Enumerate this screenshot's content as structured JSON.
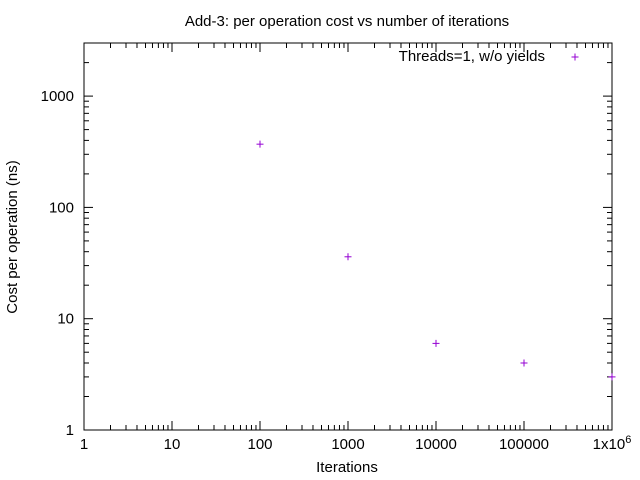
{
  "chart_data": {
    "type": "scatter",
    "title": "Add-3: per operation cost vs number of iterations",
    "xlabel": "Iterations",
    "ylabel": "Cost per operation (ns)",
    "x_scale": "log",
    "y_scale": "log",
    "xlim": [
      1,
      1000000
    ],
    "ylim": [
      1,
      3000
    ],
    "grid": false,
    "legend_position": "top-right",
    "x_ticks": [
      {
        "value": 1,
        "label": "1"
      },
      {
        "value": 10,
        "label": "10"
      },
      {
        "value": 100,
        "label": "100"
      },
      {
        "value": 1000,
        "label": "1000"
      },
      {
        "value": 10000,
        "label": "10000"
      },
      {
        "value": 100000,
        "label": "100000"
      },
      {
        "value": 1000000,
        "label": "1x10",
        "superscript": "6"
      }
    ],
    "y_ticks": [
      {
        "value": 1,
        "label": "1"
      },
      {
        "value": 10,
        "label": "10"
      },
      {
        "value": 100,
        "label": "100"
      },
      {
        "value": 1000,
        "label": "1000"
      }
    ],
    "series": [
      {
        "name": "Threads=1, w/o yields",
        "color": "#9400d3",
        "marker": "plus",
        "x": [
          100,
          1000,
          10000,
          100000,
          1000000
        ],
        "y": [
          370,
          36,
          6,
          4,
          3
        ]
      }
    ]
  }
}
